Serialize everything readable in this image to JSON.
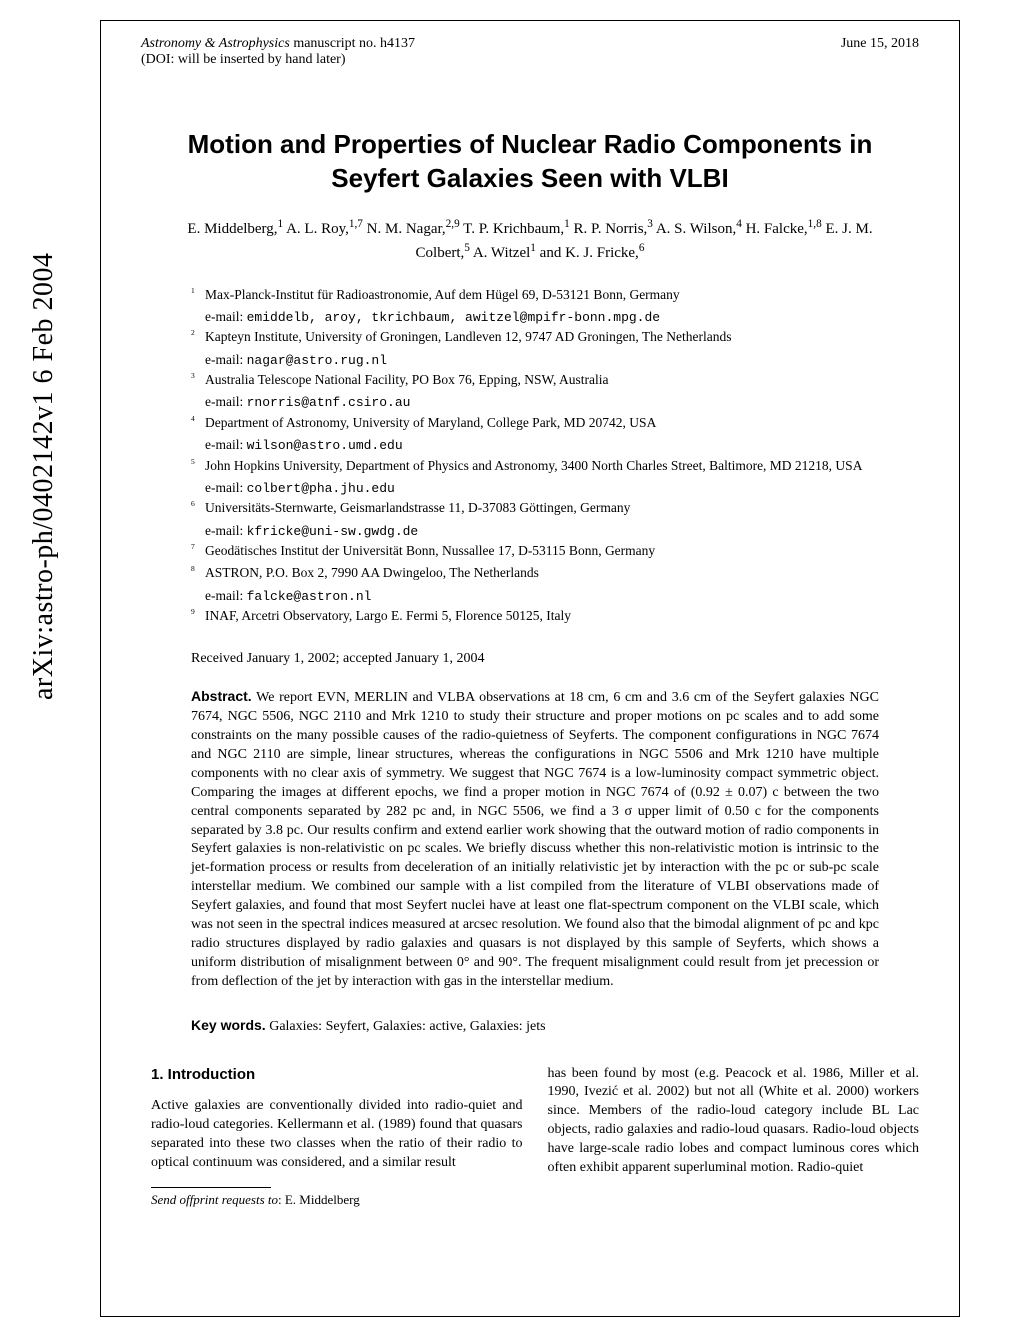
{
  "header": {
    "journal": "Astronomy & Astrophysics",
    "manuscript": " manuscript no. h4137",
    "date": "June 15, 2018",
    "doi": "(DOI: will be inserted by hand later)"
  },
  "arxiv": "arXiv:astro-ph/0402142v1  6 Feb 2004",
  "title": "Motion and Properties of Nuclear Radio Components in Seyfert Galaxies Seen with VLBI",
  "authors_html": "E. Middelberg,<sup>1</sup> A. L. Roy,<sup>1,7</sup> N. M. Nagar,<sup>2,9</sup> T. P. Krichbaum,<sup>1</sup> R. P. Norris,<sup>3</sup> A. S. Wilson,<sup>4</sup> H. Falcke,<sup>1,8</sup> E. J. M. Colbert,<sup>5</sup> A. Witzel<sup>1</sup> and K. J. Fricke,<sup>6</sup>",
  "affiliations": [
    {
      "n": "1",
      "text": "Max-Planck-Institut für Radioastronomie, Auf dem Hügel 69, D-53121 Bonn, Germany",
      "email": "emiddelb, aroy, tkrichbaum, awitzel@mpifr-bonn.mpg.de"
    },
    {
      "n": "2",
      "text": "Kapteyn Institute, University of Groningen, Landleven 12, 9747 AD Groningen, The Netherlands",
      "email": "nagar@astro.rug.nl"
    },
    {
      "n": "3",
      "text": "Australia Telescope National Facility, PO Box 76, Epping, NSW, Australia",
      "email": "rnorris@atnf.csiro.au"
    },
    {
      "n": "4",
      "text": "Department of Astronomy, University of Maryland, College Park, MD 20742, USA",
      "email": "wilson@astro.umd.edu"
    },
    {
      "n": "5",
      "text": "John Hopkins University, Department of Physics and Astronomy, 3400 North Charles Street, Baltimore, MD 21218, USA",
      "email": "colbert@pha.jhu.edu"
    },
    {
      "n": "6",
      "text": "Universitäts-Sternwarte, Geismarlandstrasse 11, D-37083 Göttingen, Germany",
      "email": "kfricke@uni-sw.gwdg.de"
    },
    {
      "n": "7",
      "text": "Geodätisches Institut der Universität Bonn, Nussallee 17, D-53115 Bonn, Germany",
      "email": null
    },
    {
      "n": "8",
      "text": "ASTRON, P.O. Box 2, 7990 AA Dwingeloo, The Netherlands",
      "email": "falcke@astron.nl"
    },
    {
      "n": "9",
      "text": "INAF, Arcetri Observatory, Largo E. Fermi 5, Florence 50125, Italy",
      "email": null
    }
  ],
  "received": "Received January 1, 2002; accepted January 1, 2004",
  "abstract_label": "Abstract.",
  "abstract": " We report EVN, MERLIN and VLBA observations at 18 cm, 6 cm and 3.6 cm of the Seyfert galaxies NGC 7674, NGC 5506, NGC 2110 and Mrk 1210 to study their structure and proper motions on pc scales and to add some constraints on the many possible causes of the radio-quietness of Seyferts. The component configurations in NGC 7674 and NGC 2110 are simple, linear structures, whereas the configurations in NGC 5506 and Mrk 1210 have multiple components with no clear axis of symmetry. We suggest that NGC 7674 is a low-luminosity compact symmetric object. Comparing the images at different epochs, we find a proper motion in NGC 7674 of (0.92 ± 0.07) c between the two central components separated by 282 pc and, in NGC 5506, we find a 3 σ upper limit of 0.50 c for the components separated by 3.8 pc. Our results confirm and extend earlier work showing that the outward motion of radio components in Seyfert galaxies is non-relativistic on pc scales. We briefly discuss whether this non-relativistic motion is intrinsic to the jet-formation process or results from deceleration of an initially relativistic jet by interaction with the pc or sub-pc scale interstellar medium. We combined our sample with a list compiled from the literature of VLBI observations made of Seyfert galaxies, and found that most Seyfert nuclei have at least one flat-spectrum component on the VLBI scale, which was not seen in the spectral indices measured at arcsec resolution. We found also that the bimodal alignment of pc and kpc radio structures displayed by radio galaxies and quasars is not displayed by this sample of Seyferts, which shows a uniform distribution of misalignment between 0° and 90°. The frequent misalignment could result from jet precession or from deflection of the jet by interaction with gas in the interstellar medium.",
  "keywords_label": "Key words.",
  "keywords": " Galaxies: Seyfert, Galaxies: active, Galaxies: jets",
  "section1": {
    "heading": "1. Introduction",
    "col1": "Active galaxies are conventionally divided into radio-quiet and radio-loud categories. Kellermann et al. (1989) found that quasars separated into these two classes when the ratio of their radio to optical continuum was considered, and a similar result",
    "col2": "has been found by most (e.g. Peacock et al. 1986, Miller et al. 1990, Ivezić et al. 2002) but not all (White et al. 2000) workers since. Members of the radio-loud category include BL Lac objects, radio galaxies and radio-loud quasars. Radio-loud objects have large-scale radio lobes and compact luminous cores which often exhibit apparent superluminal motion. Radio-quiet"
  },
  "footnote": {
    "label": "Send offprint requests to",
    "name": ": E. Middelberg"
  }
}
